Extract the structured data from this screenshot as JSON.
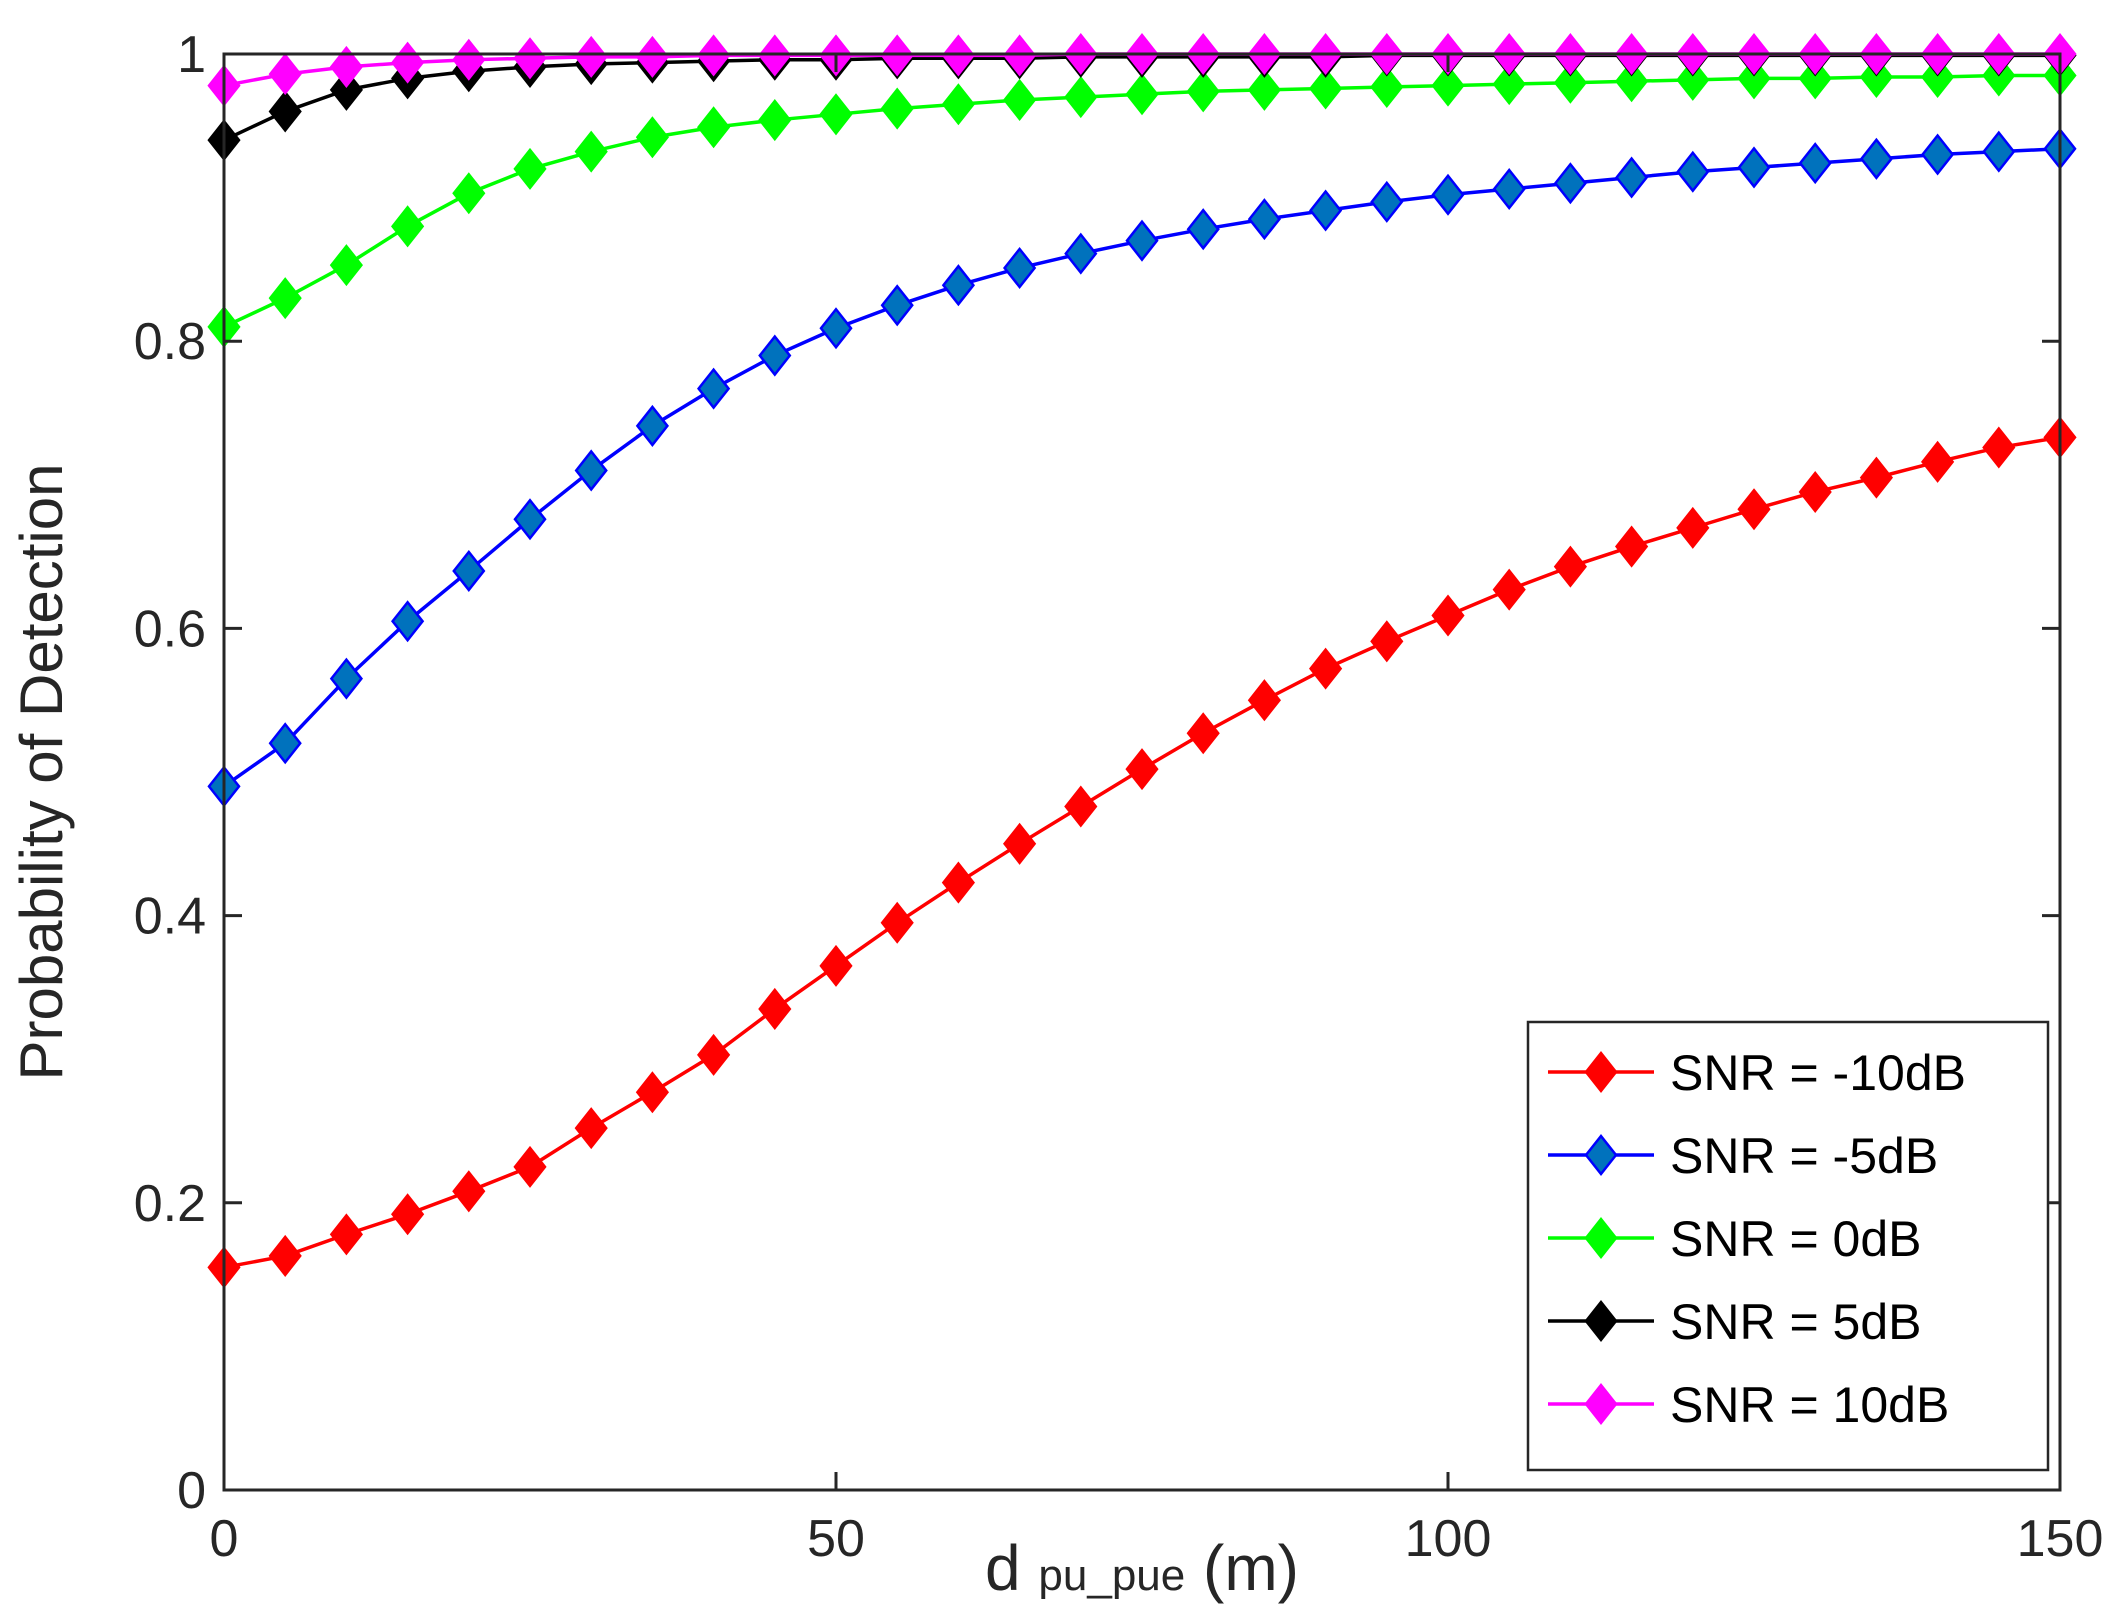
{
  "chart_data": {
    "type": "line",
    "xlabel_main": "d",
    "xlabel_sub": "pu_pue",
    "xlabel_unit": " (m)",
    "ylabel": "Probability of Detection",
    "xlim": [
      0,
      150
    ],
    "ylim": [
      0,
      1
    ],
    "xticks": [
      0,
      50,
      100,
      150
    ],
    "yticks": [
      0,
      0.2,
      0.4,
      0.6,
      0.8,
      1
    ],
    "ytick_labels": [
      "0",
      "0.2",
      "0.4",
      "0.6",
      "0.8",
      "1"
    ],
    "grid": false,
    "legend_position": "bottom-right",
    "x": [
      0,
      5,
      10,
      15,
      20,
      25,
      30,
      35,
      40,
      45,
      50,
      55,
      60,
      65,
      70,
      75,
      80,
      85,
      90,
      95,
      100,
      105,
      110,
      115,
      120,
      125,
      130,
      135,
      140,
      145,
      150
    ],
    "series": [
      {
        "name": "SNR = -10dB",
        "color": "#ff0000",
        "marker_color": "#ff0000",
        "values": [
          0.155,
          0.163,
          0.178,
          0.192,
          0.208,
          0.225,
          0.252,
          0.277,
          0.303,
          0.335,
          0.365,
          0.395,
          0.423,
          0.45,
          0.476,
          0.502,
          0.527,
          0.55,
          0.572,
          0.591,
          0.609,
          0.627,
          0.643,
          0.657,
          0.67,
          0.683,
          0.695,
          0.705,
          0.716,
          0.726,
          0.733
        ]
      },
      {
        "name": "SNR = -5dB",
        "color": "#0000ff",
        "marker_color": "#0072bd",
        "values": [
          0.49,
          0.52,
          0.565,
          0.605,
          0.64,
          0.676,
          0.71,
          0.741,
          0.767,
          0.79,
          0.809,
          0.825,
          0.839,
          0.851,
          0.861,
          0.87,
          0.878,
          0.885,
          0.891,
          0.897,
          0.902,
          0.906,
          0.91,
          0.914,
          0.918,
          0.921,
          0.924,
          0.927,
          0.93,
          0.932,
          0.934
        ]
      },
      {
        "name": "SNR = 0dB",
        "color": "#00ff00",
        "marker_color": "#00ff00",
        "values": [
          0.81,
          0.83,
          0.853,
          0.88,
          0.903,
          0.92,
          0.932,
          0.942,
          0.949,
          0.954,
          0.958,
          0.962,
          0.965,
          0.968,
          0.97,
          0.972,
          0.974,
          0.975,
          0.976,
          0.977,
          0.978,
          0.979,
          0.98,
          0.981,
          0.982,
          0.983,
          0.983,
          0.984,
          0.984,
          0.985,
          0.985
        ]
      },
      {
        "name": "SNR = 5dB",
        "color": "#000000",
        "marker_color": "#000000",
        "values": [
          0.94,
          0.96,
          0.975,
          0.983,
          0.988,
          0.991,
          0.993,
          0.994,
          0.995,
          0.996,
          0.996,
          0.997,
          0.997,
          0.997,
          0.998,
          0.998,
          0.998,
          0.998,
          0.998,
          0.999,
          0.999,
          0.999,
          0.999,
          0.999,
          0.999,
          0.999,
          0.999,
          0.999,
          0.999,
          0.999,
          0.999
        ]
      },
      {
        "name": "SNR = 10dB",
        "color": "#ff00ff",
        "marker_color": "#ff00ff",
        "values": [
          0.978,
          0.986,
          0.991,
          0.994,
          0.996,
          0.997,
          0.998,
          0.998,
          0.999,
          0.999,
          0.999,
          0.999,
          0.999,
          0.999,
          1.0,
          1.0,
          1.0,
          1.0,
          1.0,
          1.0,
          1.0,
          1.0,
          1.0,
          1.0,
          1.0,
          1.0,
          1.0,
          1.0,
          1.0,
          1.0,
          1.0
        ]
      }
    ]
  }
}
